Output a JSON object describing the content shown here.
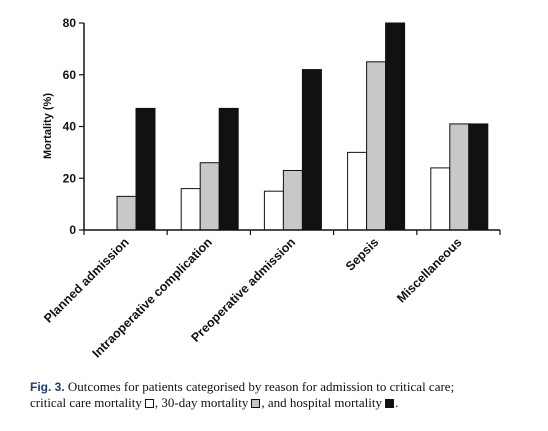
{
  "chart_data": {
    "type": "bar",
    "categories": [
      "Planned admission",
      "Intraoperative complication",
      "Preoperative admission",
      "Sepsis",
      "Miscellaneous"
    ],
    "series": [
      {
        "name": "critical care mortality",
        "color": "#ffffff",
        "values": [
          0,
          16,
          15,
          30,
          24
        ]
      },
      {
        "name": "30-day mortality",
        "color": "#c8c8c8",
        "values": [
          13,
          26,
          23,
          65,
          41
        ]
      },
      {
        "name": "hospital mortality",
        "color": "#111111",
        "values": [
          47,
          47,
          62,
          80,
          41
        ]
      }
    ],
    "ylabel": "Mortality (%)",
    "ylim": [
      0,
      80
    ],
    "yticks": [
      "0",
      "20",
      "40",
      "60",
      "80"
    ],
    "grid": false
  },
  "caption": {
    "fig_label": "Fig. 3.",
    "line1_text": "Outcomes for patients categorised by reason for admission to critical care;",
    "line2_part1": "critical care mortality",
    "line2_part2": ", 30-day mortality",
    "line2_part3": ", and hospital mortality",
    "line2_end": "."
  }
}
